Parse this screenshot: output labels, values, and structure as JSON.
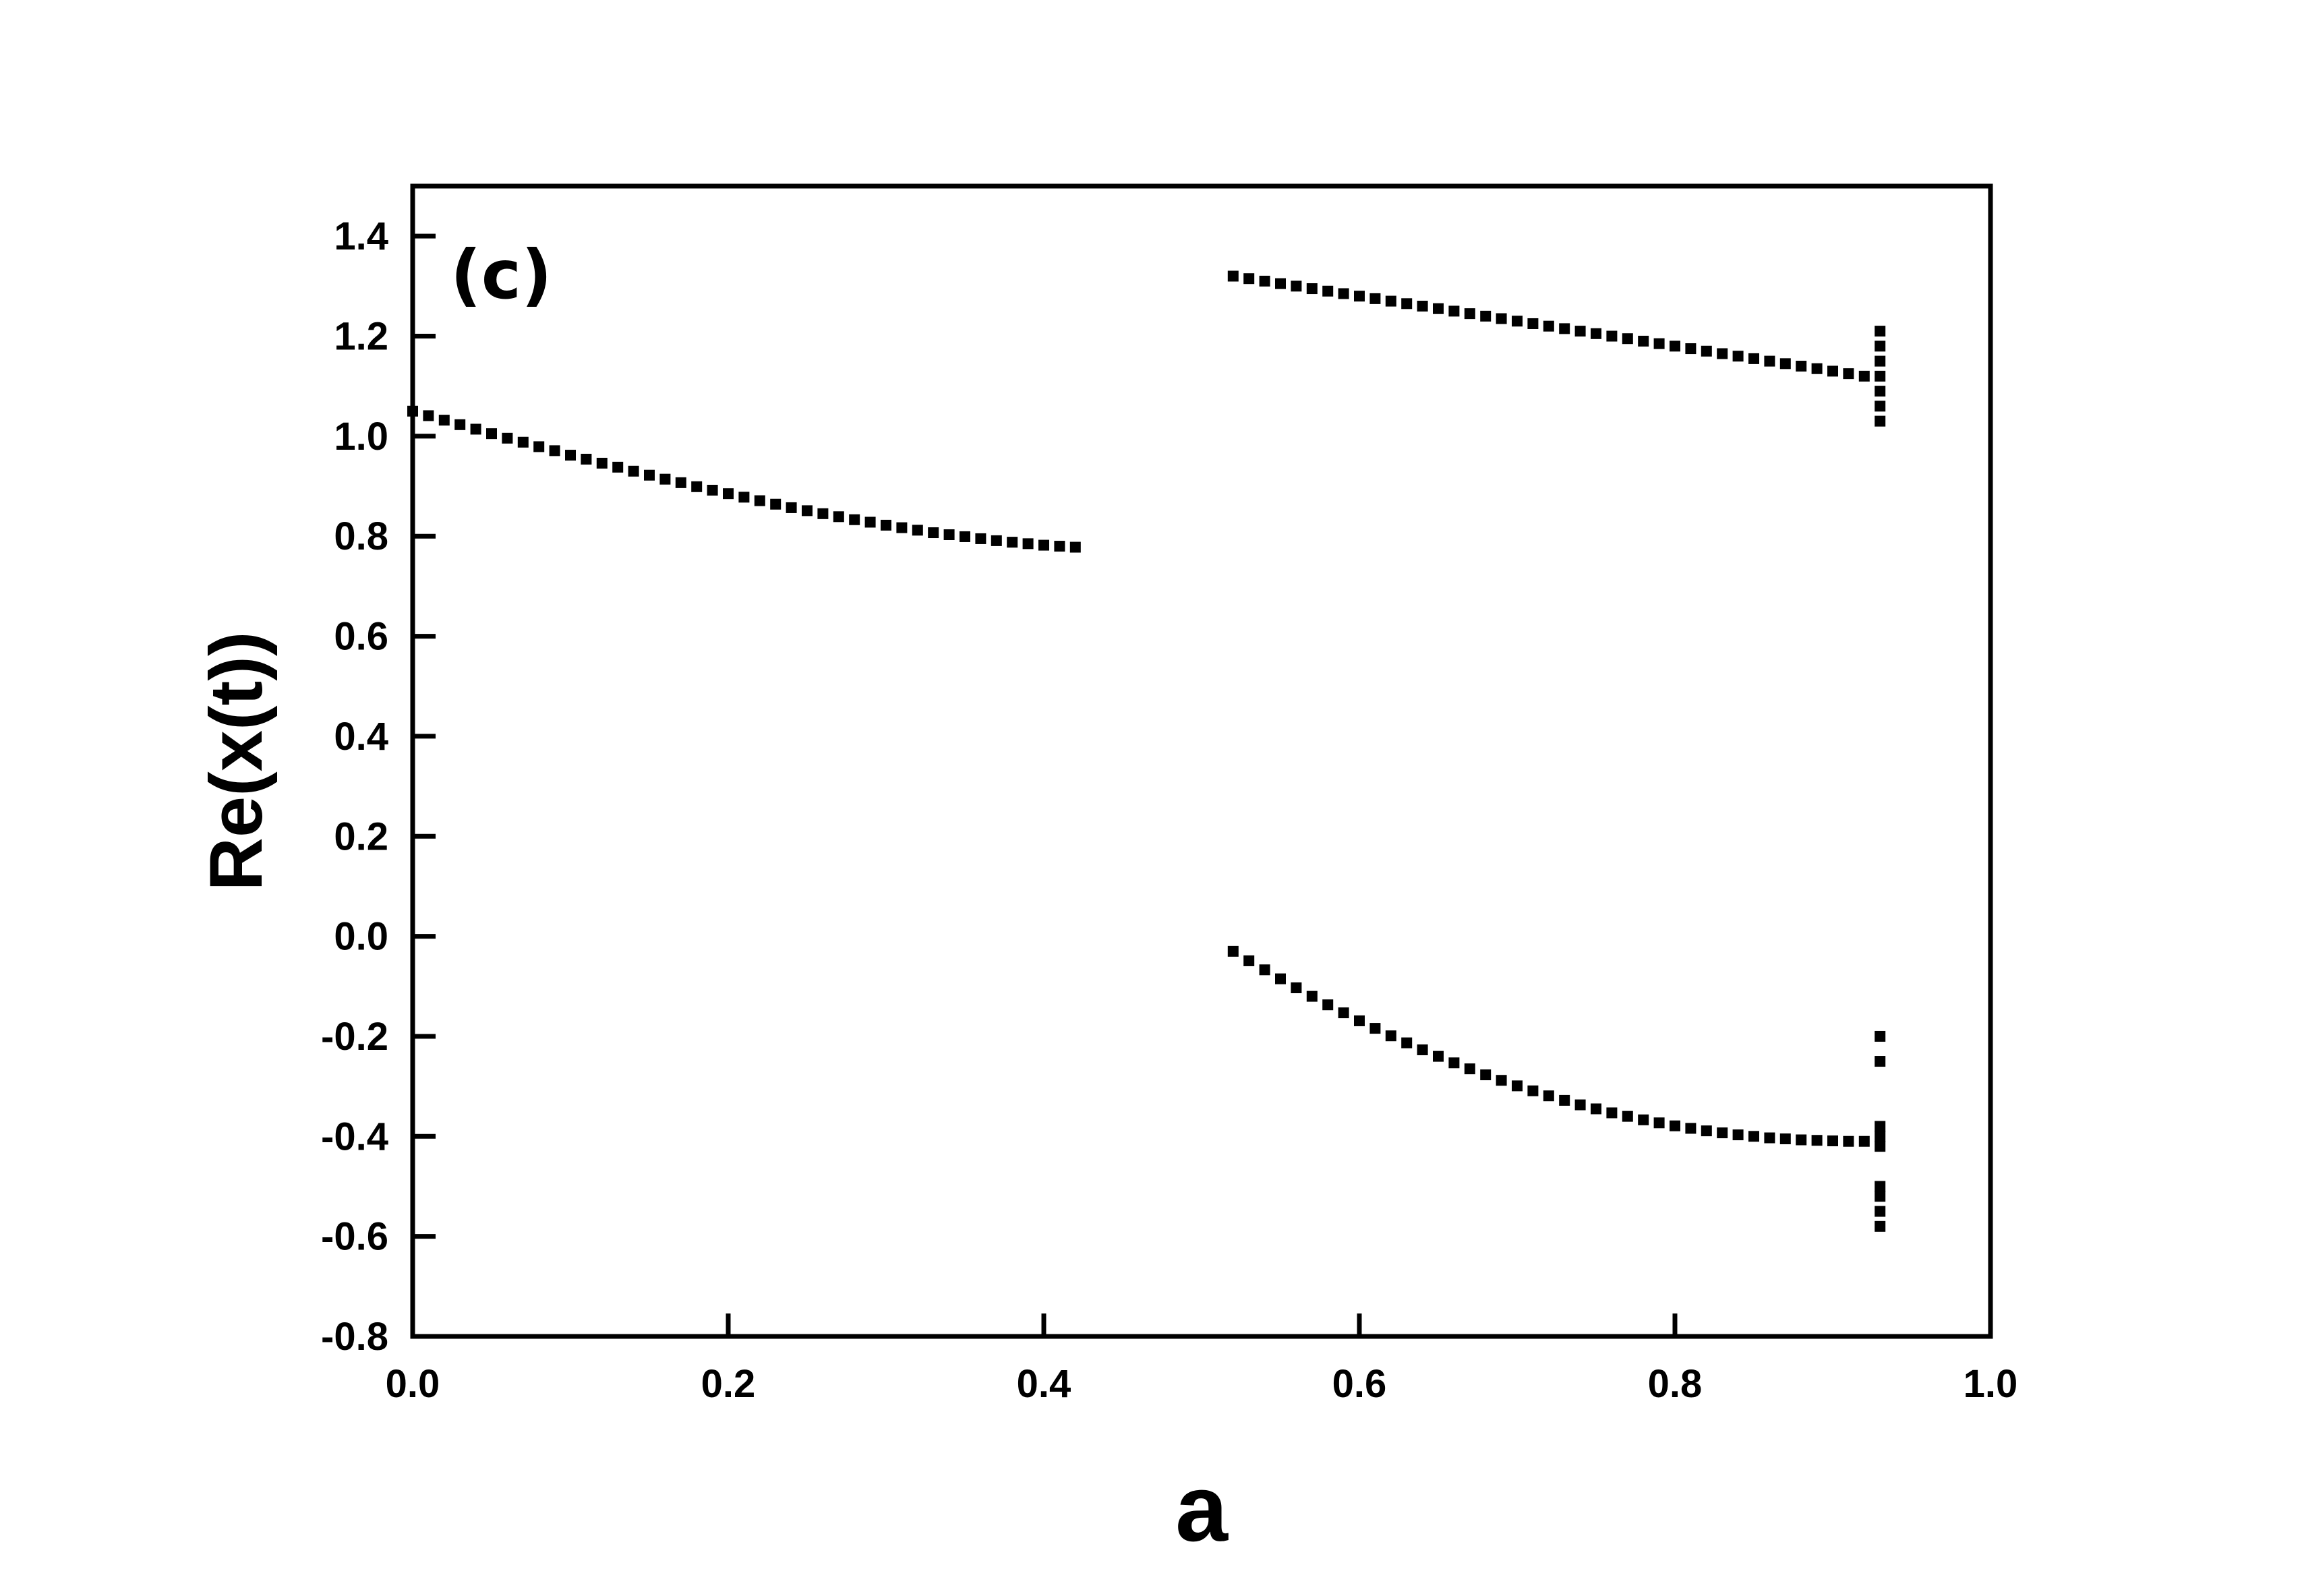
{
  "chart_data": {
    "type": "scatter",
    "panel_label": "(c)",
    "xlabel": "a",
    "ylabel": "Re(x(t))",
    "xlim": [
      0.0,
      1.0
    ],
    "ylim": [
      -0.8,
      1.5
    ],
    "x_ticks": [
      0.0,
      0.2,
      0.4,
      0.6,
      0.8,
      1.0
    ],
    "x_tick_labels": [
      "0.0",
      "0.2",
      "0.4",
      "0.6",
      "0.8",
      "1.0"
    ],
    "y_ticks": [
      -0.8,
      -0.6,
      -0.4,
      -0.2,
      0.0,
      0.2,
      0.4,
      0.6,
      0.8,
      1.0,
      1.2,
      1.4
    ],
    "y_tick_labels": [
      "-0.8",
      "-0.6",
      "-0.4",
      "-0.2",
      "0.0",
      "0.2",
      "0.4",
      "0.6",
      "0.8",
      "1.0",
      "1.2",
      "1.4"
    ],
    "grid": false,
    "legend": "none",
    "marker_color": "#000000",
    "series": [
      {
        "x": [
          0.0,
          0.01,
          0.02,
          0.03,
          0.04,
          0.05,
          0.06,
          0.07,
          0.08,
          0.09,
          0.1,
          0.11,
          0.12,
          0.13,
          0.14,
          0.15,
          0.16,
          0.17,
          0.18,
          0.19,
          0.2,
          0.21,
          0.22,
          0.23,
          0.24,
          0.25,
          0.26,
          0.27,
          0.28,
          0.29,
          0.3,
          0.31,
          0.32,
          0.33,
          0.34,
          0.35,
          0.36,
          0.37,
          0.38,
          0.39,
          0.4,
          0.41,
          0.42
        ],
        "y": [
          1.05,
          1.041,
          1.032,
          1.023,
          1.014,
          1.005,
          0.996,
          0.988,
          0.979,
          0.971,
          0.962,
          0.954,
          0.946,
          0.938,
          0.93,
          0.922,
          0.914,
          0.907,
          0.899,
          0.892,
          0.885,
          0.878,
          0.871,
          0.864,
          0.857,
          0.851,
          0.845,
          0.839,
          0.833,
          0.828,
          0.822,
          0.817,
          0.812,
          0.807,
          0.803,
          0.799,
          0.795,
          0.791,
          0.788,
          0.785,
          0.782,
          0.78,
          0.778
        ]
      },
      {
        "x": [
          0.52,
          0.53,
          0.54,
          0.55,
          0.56,
          0.57,
          0.58,
          0.59,
          0.6,
          0.61,
          0.62,
          0.63,
          0.64,
          0.65,
          0.66,
          0.67,
          0.68,
          0.69,
          0.7,
          0.71,
          0.72,
          0.73,
          0.74,
          0.75,
          0.76,
          0.77,
          0.78,
          0.79,
          0.8,
          0.81,
          0.82,
          0.83,
          0.84,
          0.85,
          0.86,
          0.87,
          0.88,
          0.89,
          0.9,
          0.91,
          0.92
        ],
        "y": [
          1.32,
          1.315,
          1.31,
          1.305,
          1.3,
          1.295,
          1.29,
          1.285,
          1.28,
          1.275,
          1.27,
          1.265,
          1.26,
          1.255,
          1.25,
          1.245,
          1.24,
          1.235,
          1.23,
          1.225,
          1.22,
          1.215,
          1.21,
          1.205,
          1.2,
          1.195,
          1.19,
          1.185,
          1.18,
          1.175,
          1.17,
          1.165,
          1.16,
          1.155,
          1.15,
          1.145,
          1.14,
          1.135,
          1.13,
          1.125,
          1.12
        ]
      },
      {
        "x": [
          0.52,
          0.53,
          0.54,
          0.55,
          0.56,
          0.57,
          0.58,
          0.59,
          0.6,
          0.61,
          0.62,
          0.63,
          0.64,
          0.65,
          0.66,
          0.67,
          0.68,
          0.69,
          0.7,
          0.71,
          0.72,
          0.73,
          0.74,
          0.75,
          0.76,
          0.77,
          0.78,
          0.79,
          0.8,
          0.81,
          0.82,
          0.83,
          0.84,
          0.85,
          0.86,
          0.87,
          0.88,
          0.89,
          0.9,
          0.91,
          0.92
        ],
        "y": [
          -0.03,
          -0.049,
          -0.067,
          -0.085,
          -0.103,
          -0.12,
          -0.137,
          -0.153,
          -0.169,
          -0.184,
          -0.199,
          -0.213,
          -0.227,
          -0.24,
          -0.253,
          -0.265,
          -0.277,
          -0.288,
          -0.299,
          -0.309,
          -0.319,
          -0.328,
          -0.337,
          -0.345,
          -0.353,
          -0.36,
          -0.367,
          -0.373,
          -0.379,
          -0.384,
          -0.389,
          -0.393,
          -0.397,
          -0.4,
          -0.403,
          -0.405,
          -0.407,
          -0.408,
          -0.409,
          -0.41,
          -0.41
        ]
      },
      {
        "x": [
          0.93,
          0.93,
          0.93,
          0.93,
          0.93,
          0.93,
          0.93,
          0.93,
          0.93,
          0.93,
          0.93,
          0.93,
          0.93,
          0.93,
          0.93,
          0.93
        ],
        "y": [
          1.21,
          1.18,
          1.15,
          1.12,
          1.09,
          1.06,
          1.03,
          -0.2,
          -0.25,
          -0.38,
          -0.4,
          -0.42,
          -0.5,
          -0.52,
          -0.55,
          -0.58
        ]
      }
    ]
  }
}
